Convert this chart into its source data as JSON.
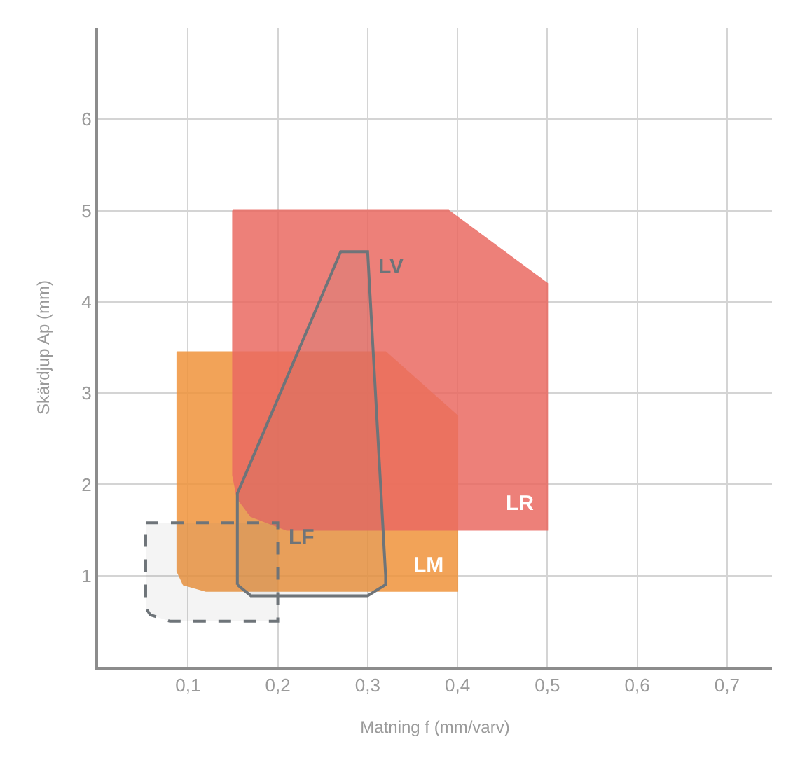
{
  "chart_data": {
    "type": "area",
    "xlabel": "Matning f (mm/varv)",
    "ylabel": "Skärdjup Ap (mm)",
    "xlim": [
      0,
      0.75
    ],
    "ylim": [
      0,
      7
    ],
    "xticks": [
      {
        "value": 0.1,
        "label": "0,1"
      },
      {
        "value": 0.2,
        "label": "0,2"
      },
      {
        "value": 0.3,
        "label": "0,3"
      },
      {
        "value": 0.4,
        "label": "0,4"
      },
      {
        "value": 0.5,
        "label": "0,5"
      },
      {
        "value": 0.6,
        "label": "0,6"
      },
      {
        "value": 0.7,
        "label": "0,7"
      }
    ],
    "yticks": [
      1,
      2,
      3,
      4,
      5,
      6
    ],
    "grid": true,
    "legend": false,
    "series": [
      {
        "name": "LM",
        "color": "#f0943c",
        "x": [
          0.088,
          0.32,
          0.4,
          0.4,
          0.12,
          0.095,
          0.088,
          0.088
        ],
        "values": [
          3.45,
          3.45,
          2.75,
          0.83,
          0.83,
          0.9,
          1.05,
          3.45
        ]
      },
      {
        "name": "LR",
        "color": "#ea6a62",
        "x": [
          0.15,
          0.39,
          0.5,
          0.5,
          0.21,
          0.17,
          0.155,
          0.15,
          0.15
        ],
        "values": [
          5,
          5,
          4.2,
          1.5,
          1.5,
          1.65,
          1.85,
          2.1,
          5
        ]
      },
      {
        "name": "LF",
        "line_style": "dashed",
        "color": "#6e7479",
        "x": [
          0.053,
          0.2,
          0.2,
          0.08,
          0.058,
          0.053,
          0.053
        ],
        "values": [
          1.58,
          1.58,
          0.5,
          0.5,
          0.57,
          0.65,
          1.58
        ]
      },
      {
        "name": "LV",
        "line_style": "solid",
        "color": "#6e7479",
        "x": [
          0.155,
          0.155,
          0.27,
          0.3,
          0.32,
          0.32,
          0.3,
          0.17,
          0.155
        ],
        "values": [
          0.9,
          1.9,
          4.55,
          4.55,
          1.0,
          0.9,
          0.78,
          0.78,
          0.9
        ]
      }
    ]
  }
}
